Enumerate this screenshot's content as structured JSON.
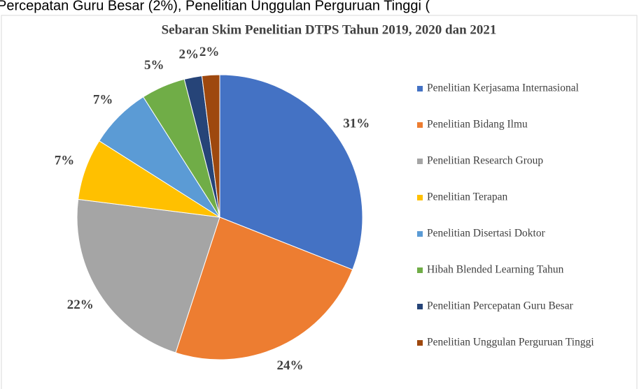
{
  "header_fragment": "Percepatan Guru Besar (2%), Penelitian Unggulan Perguruan Tinggi (",
  "chart_data": {
    "type": "pie",
    "title": "Sebaran Skim Penelitian DTPS Tahun 2019, 2020 dan 2021",
    "categories": [
      "Penelitian Kerjasama Internasional",
      "Penelitian Bidang Ilmu",
      "Penelitian Research Group",
      "Penelitian Terapan",
      "Penelitian Disertasi Doktor",
      "Hibah Blended Learning Tahun",
      "Penelitian Percepatan Guru Besar",
      "Penelitian Unggulan Perguruan Tinggi"
    ],
    "values": [
      31,
      24,
      22,
      7,
      7,
      5,
      2,
      2
    ],
    "value_labels": [
      "31%",
      "24%",
      "22%",
      "7%",
      "7%",
      "5%",
      "2%",
      "2%"
    ],
    "colors": [
      "#4472c4",
      "#ed7d31",
      "#a5a5a5",
      "#ffc000",
      "#5b9bd5",
      "#70ad47",
      "#264478",
      "#9e480e"
    ],
    "legend": "right"
  }
}
